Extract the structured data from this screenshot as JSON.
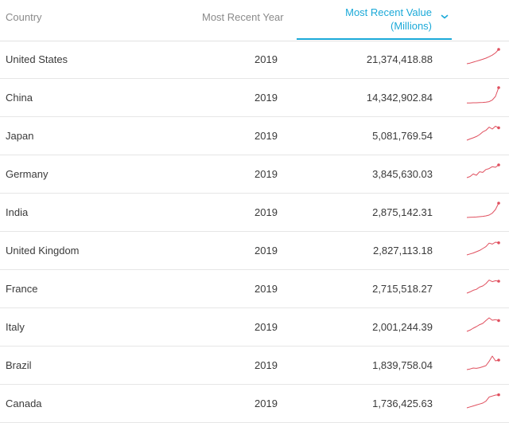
{
  "header": {
    "country": "Country",
    "year": "Most Recent Year",
    "value": "Most Recent Value\n(Millions)",
    "sort_icon": "chevron-down-icon",
    "accent": "#1ba9d8"
  },
  "spark_color": "#e0505f",
  "rows": [
    {
      "country": "United States",
      "year": "2019",
      "value": "21,374,418.88",
      "trend": [
        0.1,
        0.14,
        0.2,
        0.26,
        0.32,
        0.38,
        0.45,
        0.54,
        0.64,
        0.78,
        1.0
      ]
    },
    {
      "country": "China",
      "year": "2019",
      "value": "14,342,902.84",
      "trend": [
        0.04,
        0.04,
        0.05,
        0.05,
        0.06,
        0.07,
        0.09,
        0.12,
        0.22,
        0.45,
        1.0
      ]
    },
    {
      "country": "Japan",
      "year": "2019",
      "value": "5,081,769.54",
      "trend": [
        0.1,
        0.18,
        0.25,
        0.33,
        0.45,
        0.62,
        0.72,
        0.92,
        0.8,
        0.98,
        0.88
      ]
    },
    {
      "country": "Germany",
      "year": "2019",
      "value": "3,845,630.03",
      "trend": [
        0.15,
        0.22,
        0.38,
        0.3,
        0.52,
        0.48,
        0.66,
        0.72,
        0.84,
        0.8,
        0.95
      ]
    },
    {
      "country": "India",
      "year": "2019",
      "value": "2,875,142.31",
      "trend": [
        0.05,
        0.06,
        0.07,
        0.08,
        0.1,
        0.12,
        0.15,
        0.2,
        0.32,
        0.55,
        0.95
      ]
    },
    {
      "country": "United Kingdom",
      "year": "2019",
      "value": "2,827,113.18",
      "trend": [
        0.1,
        0.16,
        0.22,
        0.3,
        0.38,
        0.5,
        0.62,
        0.84,
        0.78,
        0.9,
        0.86
      ]
    },
    {
      "country": "France",
      "year": "2019",
      "value": "2,715,518.27",
      "trend": [
        0.1,
        0.18,
        0.28,
        0.34,
        0.48,
        0.55,
        0.7,
        0.92,
        0.82,
        0.88,
        0.85
      ]
    },
    {
      "country": "Italy",
      "year": "2019",
      "value": "2,001,244.39",
      "trend": [
        0.1,
        0.18,
        0.3,
        0.4,
        0.52,
        0.6,
        0.78,
        0.95,
        0.8,
        0.84,
        0.78
      ]
    },
    {
      "country": "Brazil",
      "year": "2019",
      "value": "1,839,758.04",
      "trend": [
        0.1,
        0.14,
        0.2,
        0.18,
        0.22,
        0.28,
        0.35,
        0.62,
        0.95,
        0.65,
        0.7
      ]
    },
    {
      "country": "Canada",
      "year": "2019",
      "value": "1,736,425.63",
      "trend": [
        0.1,
        0.16,
        0.22,
        0.28,
        0.34,
        0.4,
        0.52,
        0.78,
        0.84,
        0.9,
        0.92
      ]
    }
  ]
}
